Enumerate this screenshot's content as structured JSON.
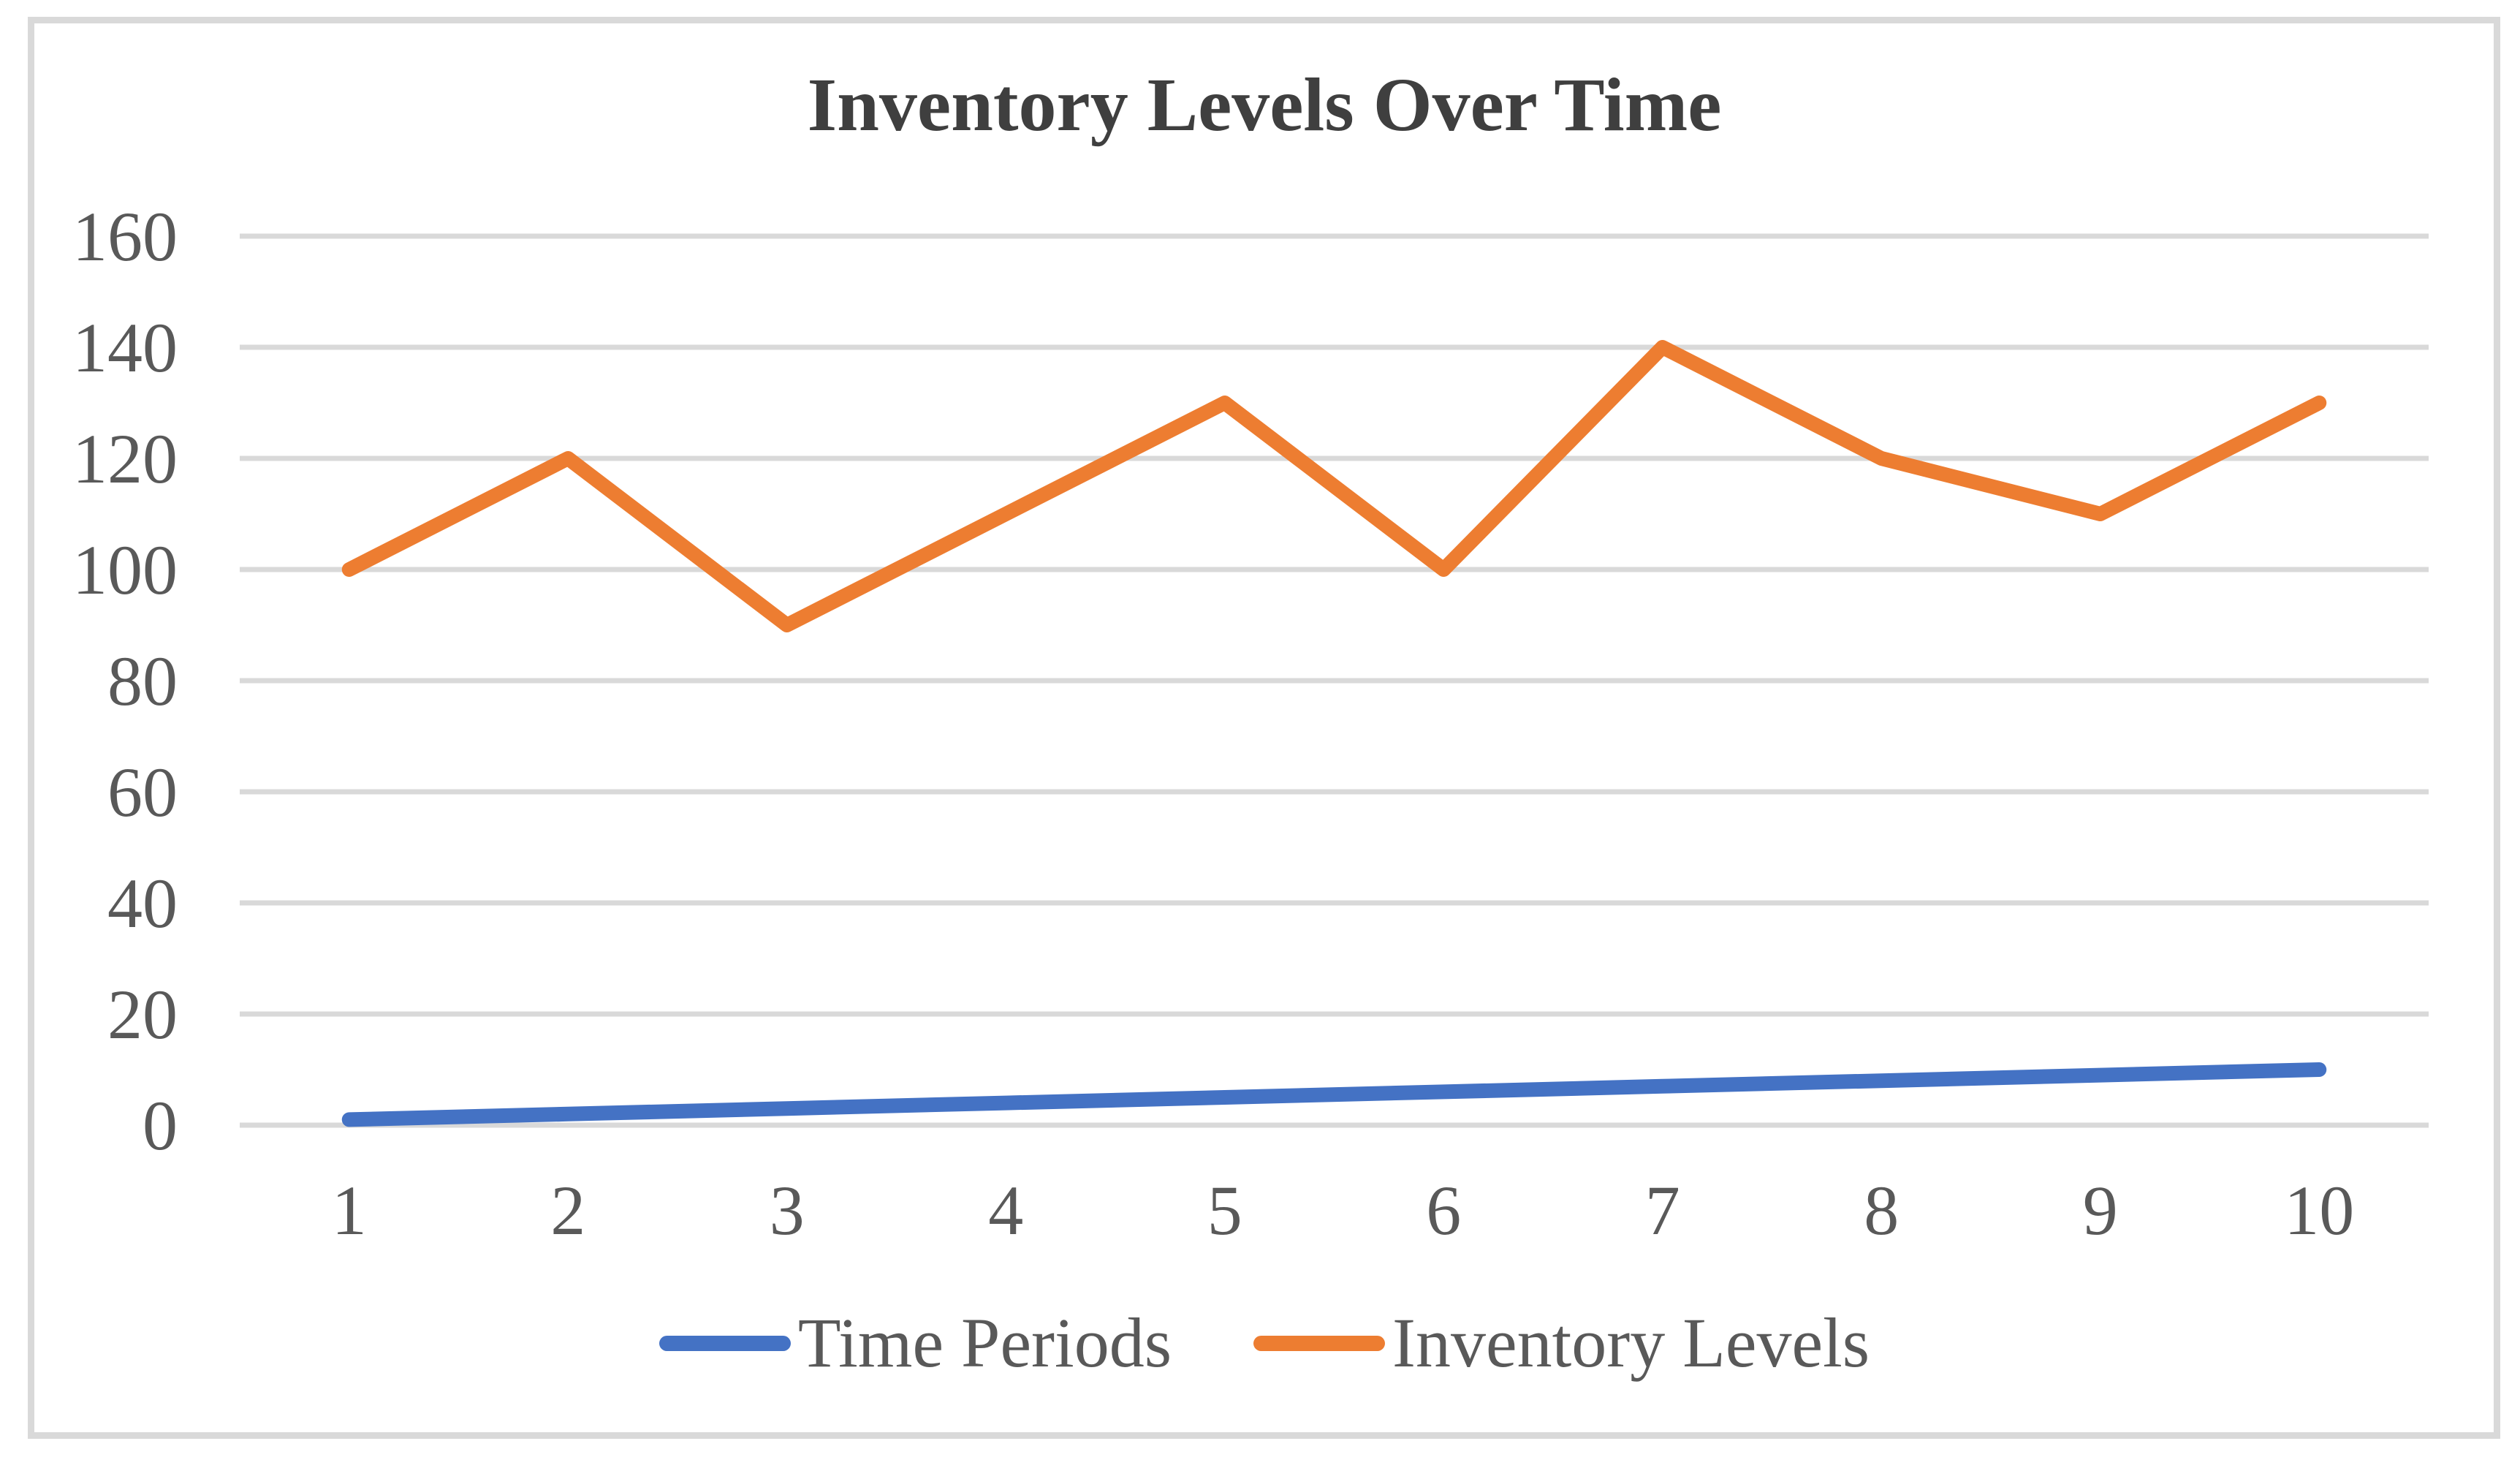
{
  "page": {
    "background": "#FFFFFF"
  },
  "chart": {
    "title_color": "#3F3F3F",
    "axis_label_color": "#595959",
    "gridline_color": "#D9D9D9",
    "frame_border_color": "#D9D9D9"
  },
  "chart_data": {
    "type": "line",
    "title": "Inventory Levels Over Time",
    "categories": [
      "1",
      "2",
      "3",
      "4",
      "5",
      "6",
      "7",
      "8",
      "9",
      "10"
    ],
    "series": [
      {
        "name": "Time Periods",
        "color": "#4472C4",
        "values": [
          1,
          2,
          3,
          4,
          5,
          6,
          7,
          8,
          9,
          10
        ]
      },
      {
        "name": "Inventory Levels",
        "color": "#ED7D31",
        "values": [
          100,
          120,
          90,
          110,
          130,
          100,
          140,
          120,
          110,
          130
        ]
      }
    ],
    "xlabel": "",
    "ylabel": "",
    "ylim": [
      0,
      160
    ],
    "ytick_step": 20,
    "grid": "horizontal-only",
    "legend_position": "bottom-center"
  }
}
